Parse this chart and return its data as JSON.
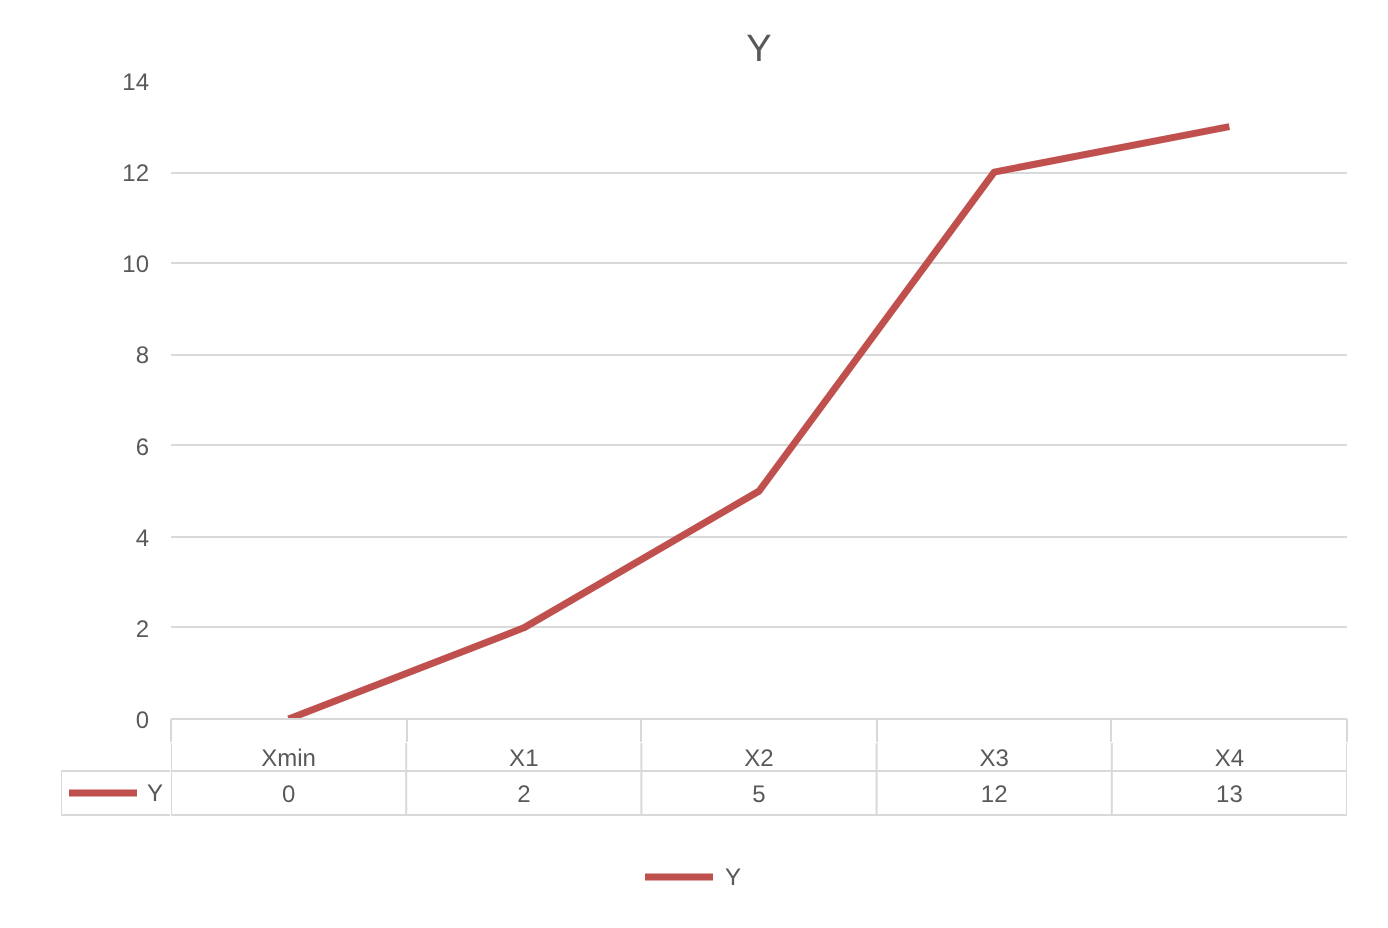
{
  "chart_data": {
    "type": "line",
    "title": "Y",
    "categories": [
      "Xmin",
      "X1",
      "X2",
      "X3",
      "X4"
    ],
    "series": [
      {
        "name": "Y",
        "color": "#c0504d",
        "values": [
          0,
          2,
          5,
          12,
          13
        ]
      }
    ],
    "ylim": [
      0,
      14
    ],
    "yticks": [
      0,
      2,
      4,
      6,
      8,
      10,
      12,
      14
    ],
    "grid": "y",
    "legend": "bottom",
    "data_labels": true,
    "line_style": "solid"
  }
}
